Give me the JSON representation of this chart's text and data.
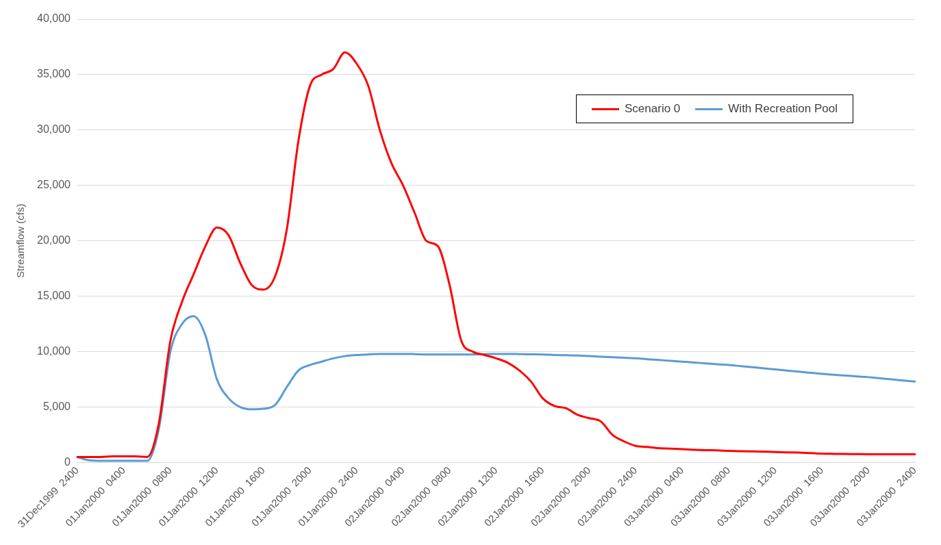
{
  "chart_data": {
    "type": "line",
    "ylabel": "Streamflow (cfs)",
    "ylim": [
      0,
      40000
    ],
    "yticks": [
      {
        "value": 0,
        "label": "0"
      },
      {
        "value": 5000,
        "label": "5,000"
      },
      {
        "value": 10000,
        "label": "10,000"
      },
      {
        "value": 15000,
        "label": "15,000"
      },
      {
        "value": 20000,
        "label": "20,000"
      },
      {
        "value": 25000,
        "label": "25,000"
      },
      {
        "value": 30000,
        "label": "30,000"
      },
      {
        "value": 35000,
        "label": "35,000"
      },
      {
        "value": 40000,
        "label": "40,000"
      }
    ],
    "categories": [
      "31Dec1999  2400",
      null,
      null,
      null,
      "01Jan2000  0400",
      null,
      null,
      null,
      "01Jan2000  0800",
      null,
      null,
      null,
      "01Jan2000  1200",
      null,
      null,
      null,
      "01Jan2000  1600",
      null,
      null,
      null,
      "01Jan2000  2000",
      null,
      null,
      null,
      "01Jan2000  2400",
      null,
      null,
      null,
      "02Jan2000  0400",
      null,
      null,
      null,
      "02Jan2000  0800",
      null,
      null,
      null,
      "02Jan2000  1200",
      null,
      null,
      null,
      "02Jan2000  1600",
      null,
      null,
      null,
      "02Jan2000  2000",
      null,
      null,
      null,
      "02Jan2000  2400",
      null,
      null,
      null,
      "03Jan2000  0400",
      null,
      null,
      null,
      "03Jan2000  0800",
      null,
      null,
      null,
      "03Jan2000  1200",
      null,
      null,
      null,
      "03Jan2000  1600",
      null,
      null,
      null,
      "03Jan2000  2000",
      null,
      null,
      null,
      "03Jan2000  2400"
    ],
    "grid": "y",
    "legend": "top right",
    "marker": "none",
    "line_style": "solid",
    "series": [
      {
        "name": "Scenario 0",
        "color": "#ff0000",
        "values": [
          500,
          500,
          500,
          550,
          550,
          550,
          500,
          3500,
          11000,
          14500,
          17000,
          19500,
          21200,
          20500,
          18000,
          16000,
          15600,
          16800,
          21000,
          29000,
          34000,
          35000,
          35500,
          37000,
          36000,
          34000,
          30000,
          27000,
          25000,
          22500,
          20000,
          19500,
          16000,
          11000,
          10000,
          9700,
          9400,
          9000,
          8300,
          7300,
          5800,
          5100,
          4900,
          4300,
          4000,
          3700,
          2500,
          1900,
          1500,
          1400,
          1300,
          1250,
          1200,
          1150,
          1120,
          1100,
          1050,
          1020,
          1000,
          980,
          950,
          920,
          900,
          850,
          800,
          780,
          770,
          760,
          750,
          750,
          750,
          750,
          750
        ]
      },
      {
        "name": "With Recreation Pool",
        "color": "#5b9bd5",
        "values": [
          500,
          200,
          150,
          150,
          150,
          150,
          150,
          3000,
          10000,
          12500,
          13200,
          11500,
          7500,
          5800,
          5000,
          4800,
          4850,
          5200,
          6800,
          8300,
          8800,
          9100,
          9400,
          9600,
          9700,
          9750,
          9800,
          9800,
          9800,
          9780,
          9750,
          9750,
          9750,
          9750,
          9750,
          9780,
          9800,
          9800,
          9780,
          9760,
          9750,
          9700,
          9680,
          9650,
          9600,
          9550,
          9500,
          9450,
          9400,
          9320,
          9250,
          9170,
          9100,
          9020,
          8950,
          8870,
          8800,
          8700,
          8600,
          8500,
          8400,
          8300,
          8200,
          8100,
          8000,
          7920,
          7850,
          7770,
          7700,
          7600,
          7500,
          7400,
          7300
        ]
      }
    ]
  }
}
